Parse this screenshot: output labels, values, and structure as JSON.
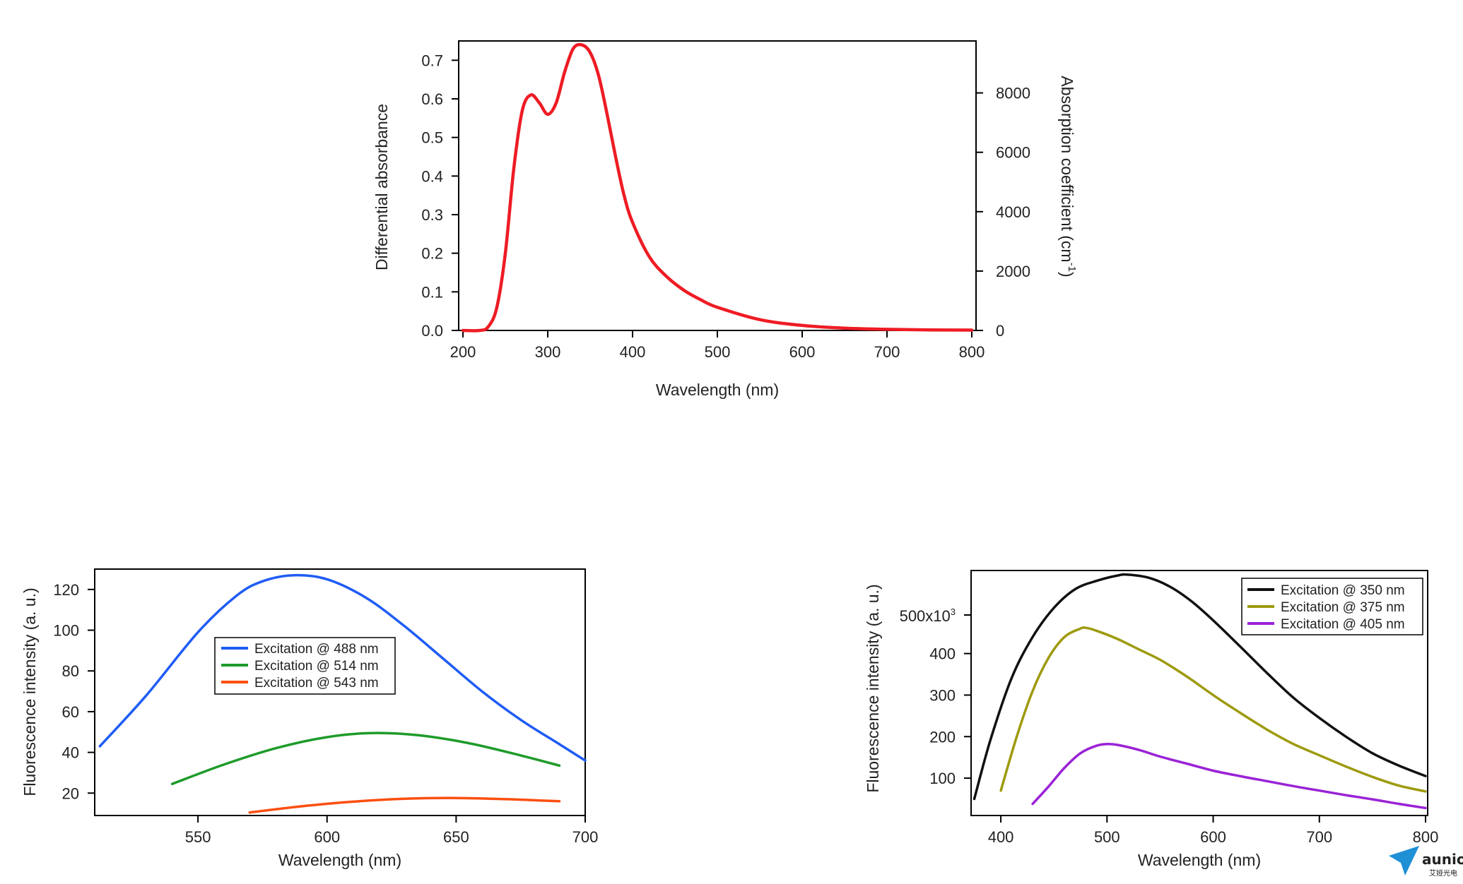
{
  "chart_data": [
    {
      "id": "absorbance",
      "type": "line",
      "xlabel": "Wavelength (nm)",
      "ylabel": "Differential absorbance",
      "y2label_main": "Absorption coefficient (cm",
      "y2label_sup": "-1",
      "y2label_close": ")",
      "xlim": [
        195,
        805
      ],
      "ylim": [
        0,
        0.75
      ],
      "y2lim": [
        0,
        9750
      ],
      "xticks": [
        "200",
        "300",
        "400",
        "500",
        "600",
        "700",
        "800"
      ],
      "yticks": [
        "0.0",
        "0.1",
        "0.2",
        "0.3",
        "0.4",
        "0.5",
        "0.6",
        "0.7"
      ],
      "y2ticks": [
        "0",
        "2000",
        "4000",
        "6000",
        "8000"
      ],
      "grid": false,
      "series": [
        {
          "color": "#ee1c24",
          "x": [
            200,
            220,
            230,
            240,
            250,
            260,
            270,
            280,
            290,
            300,
            310,
            320,
            330,
            340,
            350,
            360,
            370,
            380,
            390,
            400,
            420,
            440,
            460,
            480,
            500,
            550,
            600,
            650,
            700,
            750,
            800
          ],
          "y": [
            0.0,
            0.0,
            0.01,
            0.06,
            0.2,
            0.42,
            0.57,
            0.61,
            0.59,
            0.56,
            0.59,
            0.67,
            0.73,
            0.74,
            0.72,
            0.66,
            0.56,
            0.45,
            0.35,
            0.28,
            0.19,
            0.14,
            0.105,
            0.08,
            0.06,
            0.028,
            0.013,
            0.006,
            0.003,
            0.0015,
            0.001
          ]
        }
      ]
    },
    {
      "id": "fluorescence-left",
      "type": "line",
      "xlabel": "Wavelength (nm)",
      "ylabel": "Fluorescence intensity (a. u.)",
      "xlim": [
        510,
        700
      ],
      "ylim": [
        9,
        130
      ],
      "xticks": [
        "550",
        "600",
        "650",
        "700"
      ],
      "yticks": [
        "20",
        "40",
        "60",
        "80",
        "100",
        "120"
      ],
      "grid": false,
      "legend": "center",
      "series": [
        {
          "name": "Excitation @ 488 nm",
          "color": "#1f5cf5",
          "x": [
            512,
            530,
            550,
            565,
            575,
            587,
            600,
            615,
            630,
            645,
            660,
            675,
            690,
            700
          ],
          "y": [
            43,
            68,
            99,
            117,
            124,
            127,
            125,
            116,
            102,
            86,
            70,
            56,
            44,
            36
          ]
        },
        {
          "name": "Excitation @ 514 nm",
          "color": "#1e9b2a",
          "x": [
            540,
            560,
            580,
            600,
            617,
            635,
            655,
            675,
            690
          ],
          "y": [
            24.5,
            34,
            42,
            47.5,
            49.5,
            48.5,
            44.5,
            38.5,
            33.5
          ]
        },
        {
          "name": "Excitation @ 543 nm",
          "color": "#fb4f10",
          "x": [
            570,
            590,
            610,
            630,
            650,
            670,
            690
          ],
          "y": [
            10.5,
            13.5,
            15.8,
            17.2,
            17.6,
            17.0,
            16.0
          ]
        }
      ]
    },
    {
      "id": "fluorescence-right",
      "type": "line",
      "xlabel": "Wavelength (nm)",
      "ylabel": "Fluorescence intensity (a. u.)",
      "xlim": [
        372,
        802
      ],
      "ylim": [
        10,
        600
      ],
      "xticks": [
        "400",
        "500",
        "600",
        "700",
        "800"
      ],
      "yticks": [
        "100",
        "200",
        "300",
        "400"
      ],
      "ytick_top_main": "500x10",
      "ytick_top_sup": "3",
      "grid": false,
      "legend": "top-right",
      "series": [
        {
          "name": "Excitation @ 350 nm",
          "color": "#111111",
          "x": [
            375,
            390,
            410,
            430,
            450,
            470,
            490,
            510,
            520,
            540,
            560,
            580,
            600,
            625,
            650,
            675,
            700,
            725,
            750,
            775,
            800
          ],
          "y": [
            50,
            190,
            340,
            440,
            510,
            555,
            575,
            588,
            590,
            582,
            560,
            525,
            480,
            418,
            355,
            295,
            245,
            200,
            160,
            130,
            105
          ]
        },
        {
          "name": "Excitation @ 375 nm",
          "color": "#9e9a0e",
          "x": [
            400,
            415,
            430,
            445,
            460,
            475,
            480,
            490,
            510,
            530,
            550,
            575,
            600,
            625,
            650,
            675,
            700,
            725,
            750,
            775,
            800
          ],
          "y": [
            70,
            200,
            310,
            390,
            440,
            460,
            462,
            455,
            435,
            410,
            385,
            345,
            300,
            258,
            218,
            183,
            155,
            128,
            103,
            82,
            68
          ]
        },
        {
          "name": "Excitation @ 405 nm",
          "color": "#9a22d6",
          "x": [
            430,
            445,
            460,
            475,
            490,
            500,
            510,
            530,
            550,
            575,
            600,
            625,
            650,
            675,
            700,
            725,
            750,
            775,
            800
          ],
          "y": [
            38,
            80,
            125,
            160,
            178,
            182,
            180,
            168,
            152,
            135,
            118,
            105,
            93,
            81,
            70,
            59,
            49,
            38,
            28
          ]
        }
      ]
    }
  ],
  "logo": {
    "name": "paper-plane-icon",
    "text": "aunion",
    "subtext": "艾娅光电"
  }
}
